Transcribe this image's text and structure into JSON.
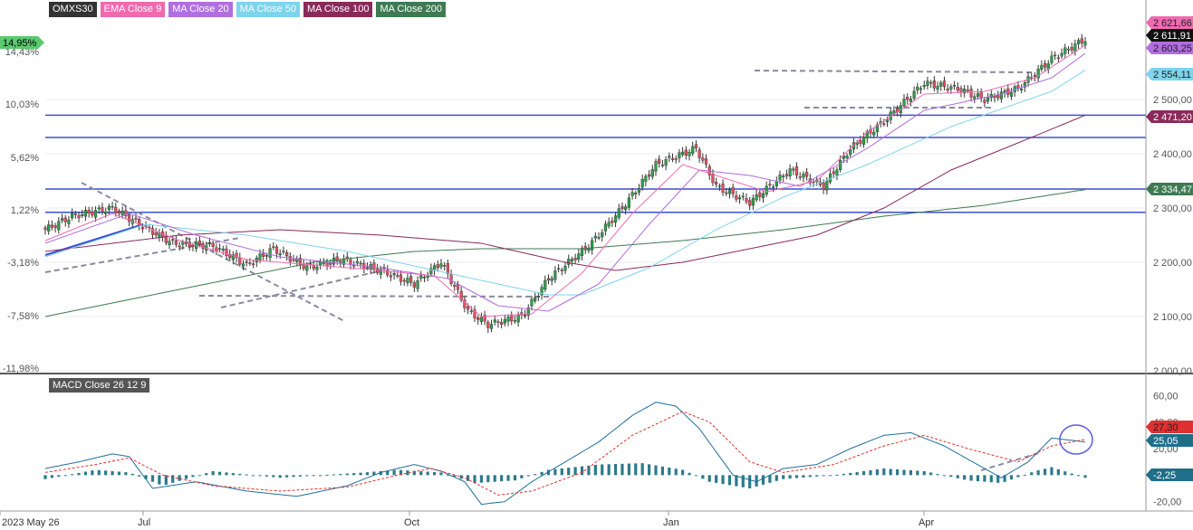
{
  "legend": [
    {
      "label": "OMXS30",
      "color": "#333333"
    },
    {
      "label": "EMA Close 9",
      "color": "#f06ab0"
    },
    {
      "label": "MA Close 20",
      "color": "#b06ee0"
    },
    {
      "label": "MA Close 50",
      "color": "#7ed4ec"
    },
    {
      "label": "MA Close 100",
      "color": "#8a2a5a"
    },
    {
      "label": "MA Close 200",
      "color": "#3e7a52"
    }
  ],
  "macd_label": "MACD Close 26 12 9",
  "chart_data": [
    {
      "type": "candlestick",
      "instrument": "OMXS30",
      "xlabels": [
        "2023 May 26",
        "Jul",
        "Oct",
        "Jan",
        "Apr"
      ],
      "y_ticks": [
        "2 000,00",
        "2 100,00",
        "2 200,00",
        "2 300,00",
        "2 400,00",
        "2 500,00"
      ],
      "y_range": [
        2000,
        2650
      ],
      "pct_ticks": [
        "14,95%",
        "14,43%",
        "10,03%",
        "5,62%",
        "1,22%",
        "-3,18%",
        "-7,58%",
        "-11,98%"
      ],
      "price_labels": [
        {
          "label": "2 621,66",
          "color": "#f06ab0",
          "value": 2621.66
        },
        {
          "label": "2 611,91",
          "color": "#111111",
          "value": 2611.91
        },
        {
          "label": "2 603,25",
          "color": "#b06ee0",
          "value": 2603.25
        },
        {
          "label": "2 554,11",
          "color": "#7ed4ec",
          "value": 2554.11
        },
        {
          "label": "2 471,20",
          "color": "#8a2a5a",
          "value": 2471.2
        },
        {
          "label": "2 334,47",
          "color": "#3e7a52",
          "value": 2334.47
        }
      ],
      "horizontal_lines": [
        2471,
        2430,
        2335,
        2292
      ],
      "series_keypoints": {
        "close": [
          [
            0,
            2260
          ],
          [
            8,
            2285
          ],
          [
            20,
            2300
          ],
          [
            28,
            2270
          ],
          [
            38,
            2235
          ],
          [
            50,
            2230
          ],
          [
            60,
            2195
          ],
          [
            68,
            2225
          ],
          [
            78,
            2190
          ],
          [
            88,
            2205
          ],
          [
            100,
            2185
          ],
          [
            110,
            2160
          ],
          [
            118,
            2200
          ],
          [
            126,
            2110
          ],
          [
            132,
            2085
          ],
          [
            142,
            2100
          ],
          [
            150,
            2170
          ],
          [
            162,
            2230
          ],
          [
            172,
            2300
          ],
          [
            182,
            2380
          ],
          [
            194,
            2410
          ],
          [
            200,
            2340
          ],
          [
            210,
            2310
          ],
          [
            222,
            2370
          ],
          [
            232,
            2340
          ],
          [
            240,
            2410
          ],
          [
            250,
            2460
          ],
          [
            262,
            2530
          ],
          [
            272,
            2520
          ],
          [
            280,
            2500
          ],
          [
            290,
            2520
          ],
          [
            300,
            2575
          ],
          [
            310,
            2611
          ]
        ],
        "ema9": [
          [
            0,
            2240
          ],
          [
            20,
            2290
          ],
          [
            40,
            2240
          ],
          [
            60,
            2205
          ],
          [
            80,
            2195
          ],
          [
            100,
            2185
          ],
          [
            116,
            2175
          ],
          [
            130,
            2100
          ],
          [
            145,
            2105
          ],
          [
            160,
            2180
          ],
          [
            175,
            2290
          ],
          [
            190,
            2380
          ],
          [
            200,
            2360
          ],
          [
            215,
            2330
          ],
          [
            230,
            2350
          ],
          [
            245,
            2440
          ],
          [
            262,
            2510
          ],
          [
            280,
            2515
          ],
          [
            295,
            2540
          ],
          [
            310,
            2600
          ]
        ],
        "ma20": [
          [
            0,
            2235
          ],
          [
            25,
            2290
          ],
          [
            45,
            2250
          ],
          [
            70,
            2210
          ],
          [
            100,
            2190
          ],
          [
            120,
            2170
          ],
          [
            135,
            2120
          ],
          [
            150,
            2110
          ],
          [
            165,
            2160
          ],
          [
            180,
            2270
          ],
          [
            195,
            2370
          ],
          [
            210,
            2360
          ],
          [
            225,
            2340
          ],
          [
            245,
            2410
          ],
          [
            262,
            2480
          ],
          [
            285,
            2510
          ],
          [
            300,
            2540
          ],
          [
            310,
            2585
          ]
        ],
        "ma50": [
          [
            0,
            2210
          ],
          [
            30,
            2270
          ],
          [
            60,
            2250
          ],
          [
            90,
            2220
          ],
          [
            120,
            2180
          ],
          [
            150,
            2140
          ],
          [
            160,
            2140
          ],
          [
            180,
            2190
          ],
          [
            200,
            2260
          ],
          [
            220,
            2320
          ],
          [
            245,
            2380
          ],
          [
            270,
            2450
          ],
          [
            300,
            2515
          ],
          [
            310,
            2554
          ]
        ],
        "ma100": [
          [
            0,
            2220
          ],
          [
            40,
            2250
          ],
          [
            70,
            2260
          ],
          [
            100,
            2250
          ],
          [
            130,
            2235
          ],
          [
            155,
            2200
          ],
          [
            170,
            2185
          ],
          [
            190,
            2200
          ],
          [
            210,
            2225
          ],
          [
            230,
            2250
          ],
          [
            250,
            2300
          ],
          [
            270,
            2370
          ],
          [
            290,
            2420
          ],
          [
            310,
            2471
          ]
        ],
        "ma200": [
          [
            0,
            2100
          ],
          [
            40,
            2150
          ],
          [
            80,
            2200
          ],
          [
            110,
            2220
          ],
          [
            130,
            2225
          ],
          [
            160,
            2225
          ],
          [
            190,
            2240
          ],
          [
            220,
            2260
          ],
          [
            250,
            2285
          ],
          [
            280,
            2305
          ],
          [
            310,
            2334
          ]
        ]
      }
    },
    {
      "type": "line",
      "name": "MACD Close 26 12 9",
      "y_ticks": [
        "60,00",
        "40,00",
        "20,00",
        "-20,00"
      ],
      "y_range": [
        -25,
        65
      ],
      "value_labels": [
        {
          "label": "27,30",
          "color": "#e03030",
          "value": 27.3
        },
        {
          "label": "25,05",
          "color": "#1f6f8b",
          "value": 25.05
        },
        {
          "label": "-2,25",
          "color": "#1f6f8b",
          "value": -2.25
        }
      ],
      "macd": [
        [
          0,
          5
        ],
        [
          10,
          10
        ],
        [
          20,
          16
        ],
        [
          25,
          14
        ],
        [
          32,
          -10
        ],
        [
          45,
          -5
        ],
        [
          60,
          -12
        ],
        [
          75,
          -16
        ],
        [
          90,
          -8
        ],
        [
          100,
          2
        ],
        [
          110,
          8
        ],
        [
          118,
          3
        ],
        [
          125,
          -5
        ],
        [
          130,
          -22
        ],
        [
          137,
          -20
        ],
        [
          145,
          -5
        ],
        [
          155,
          10
        ],
        [
          165,
          25
        ],
        [
          175,
          45
        ],
        [
          182,
          55
        ],
        [
          188,
          52
        ],
        [
          195,
          35
        ],
        [
          205,
          0
        ],
        [
          212,
          -5
        ],
        [
          220,
          5
        ],
        [
          230,
          8
        ],
        [
          240,
          20
        ],
        [
          250,
          30
        ],
        [
          258,
          32
        ],
        [
          268,
          22
        ],
        [
          275,
          12
        ],
        [
          280,
          5
        ],
        [
          285,
          -2
        ],
        [
          293,
          10
        ],
        [
          300,
          28
        ],
        [
          310,
          25
        ]
      ],
      "signal": [
        [
          0,
          2
        ],
        [
          15,
          8
        ],
        [
          25,
          13
        ],
        [
          35,
          0
        ],
        [
          50,
          -8
        ],
        [
          70,
          -12
        ],
        [
          90,
          -9
        ],
        [
          105,
          0
        ],
        [
          115,
          5
        ],
        [
          125,
          -2
        ],
        [
          135,
          -15
        ],
        [
          145,
          -12
        ],
        [
          160,
          2
        ],
        [
          175,
          30
        ],
        [
          190,
          48
        ],
        [
          198,
          40
        ],
        [
          210,
          10
        ],
        [
          220,
          2
        ],
        [
          235,
          8
        ],
        [
          250,
          22
        ],
        [
          262,
          30
        ],
        [
          275,
          20
        ],
        [
          290,
          10
        ],
        [
          300,
          22
        ],
        [
          310,
          27
        ]
      ],
      "histogram_amplitude": [
        [
          0,
          -3
        ],
        [
          15,
          4
        ],
        [
          25,
          2
        ],
        [
          35,
          -8
        ],
        [
          50,
          3
        ],
        [
          70,
          -2
        ],
        [
          95,
          2
        ],
        [
          105,
          4
        ],
        [
          118,
          2
        ],
        [
          128,
          -6
        ],
        [
          140,
          -4
        ],
        [
          150,
          4
        ],
        [
          165,
          8
        ],
        [
          178,
          9
        ],
        [
          190,
          4
        ],
        [
          198,
          -5
        ],
        [
          210,
          -10
        ],
        [
          220,
          -3
        ],
        [
          235,
          0
        ],
        [
          250,
          5
        ],
        [
          262,
          3
        ],
        [
          275,
          -4
        ],
        [
          285,
          -6
        ],
        [
          295,
          3
        ],
        [
          300,
          6
        ],
        [
          310,
          -2
        ]
      ]
    }
  ]
}
